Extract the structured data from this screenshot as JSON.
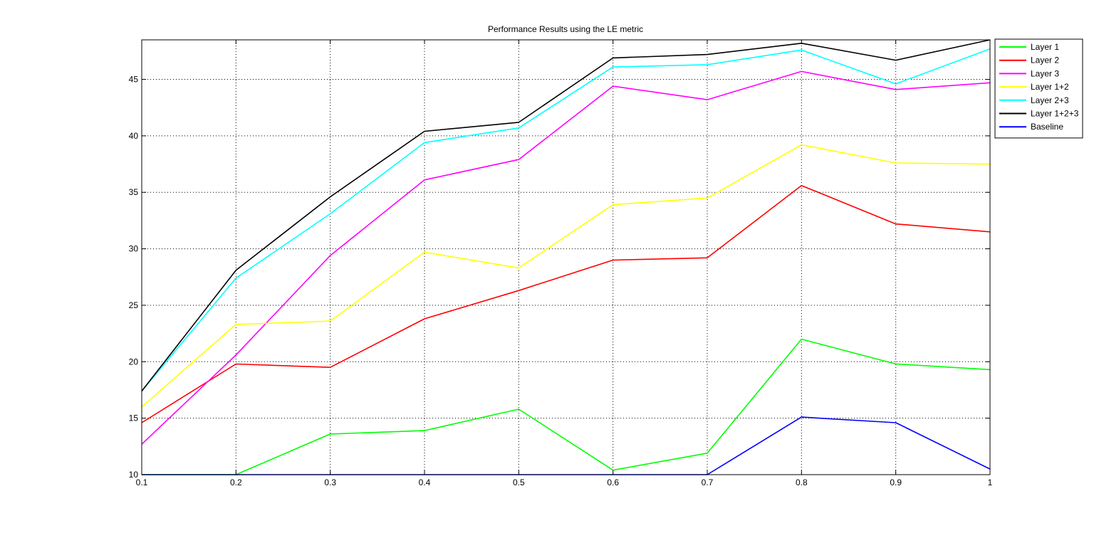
{
  "chart_data": {
    "type": "line",
    "title": "Performance Results using the LE metric",
    "xlabel": "",
    "ylabel": "",
    "x": [
      0.1,
      0.2,
      0.3,
      0.4,
      0.5,
      0.6,
      0.7,
      0.8,
      0.9,
      1.0
    ],
    "xticks": [
      "0.1",
      "0.2",
      "0.3",
      "0.4",
      "0.5",
      "0.6",
      "0.7",
      "0.8",
      "0.9",
      "1"
    ],
    "yticks": [
      "10",
      "15",
      "20",
      "25",
      "30",
      "35",
      "40",
      "45"
    ],
    "xlim": [
      0.1,
      1.0
    ],
    "ylim": [
      10,
      48.5
    ],
    "grid": true,
    "legend_position": "outside-top-right",
    "series": [
      {
        "name": "Layer 1",
        "color": "#00ff00",
        "values": [
          10.0,
          10.0,
          13.6,
          13.9,
          15.8,
          10.4,
          11.9,
          22.0,
          19.8,
          19.3
        ]
      },
      {
        "name": "Layer 2",
        "color": "#ff0000",
        "values": [
          14.6,
          19.8,
          19.5,
          23.8,
          26.3,
          29.0,
          29.2,
          35.6,
          32.2,
          31.5
        ]
      },
      {
        "name": "Layer 3",
        "color": "#ff00ff",
        "values": [
          12.7,
          20.6,
          29.4,
          36.1,
          37.9,
          44.4,
          43.2,
          45.7,
          44.1,
          44.7
        ]
      },
      {
        "name": "Layer 1+2",
        "color": "#ffff00",
        "values": [
          16.0,
          23.3,
          23.6,
          29.7,
          28.3,
          33.9,
          34.5,
          39.2,
          37.6,
          37.5
        ]
      },
      {
        "name": "Layer 2+3",
        "color": "#00ffff",
        "values": [
          17.4,
          27.4,
          33.1,
          39.4,
          40.7,
          46.1,
          46.3,
          47.6,
          44.6,
          47.7
        ]
      },
      {
        "name": "Layer 1+2+3",
        "color": "#000000",
        "values": [
          17.4,
          28.1,
          34.6,
          40.4,
          41.2,
          46.9,
          47.2,
          48.2,
          46.7,
          48.5
        ]
      },
      {
        "name": "Baseline",
        "color": "#0000ff",
        "values": [
          10.0,
          10.0,
          10.0,
          10.0,
          10.0,
          10.0,
          10.0,
          15.1,
          14.6,
          10.5
        ]
      }
    ]
  }
}
